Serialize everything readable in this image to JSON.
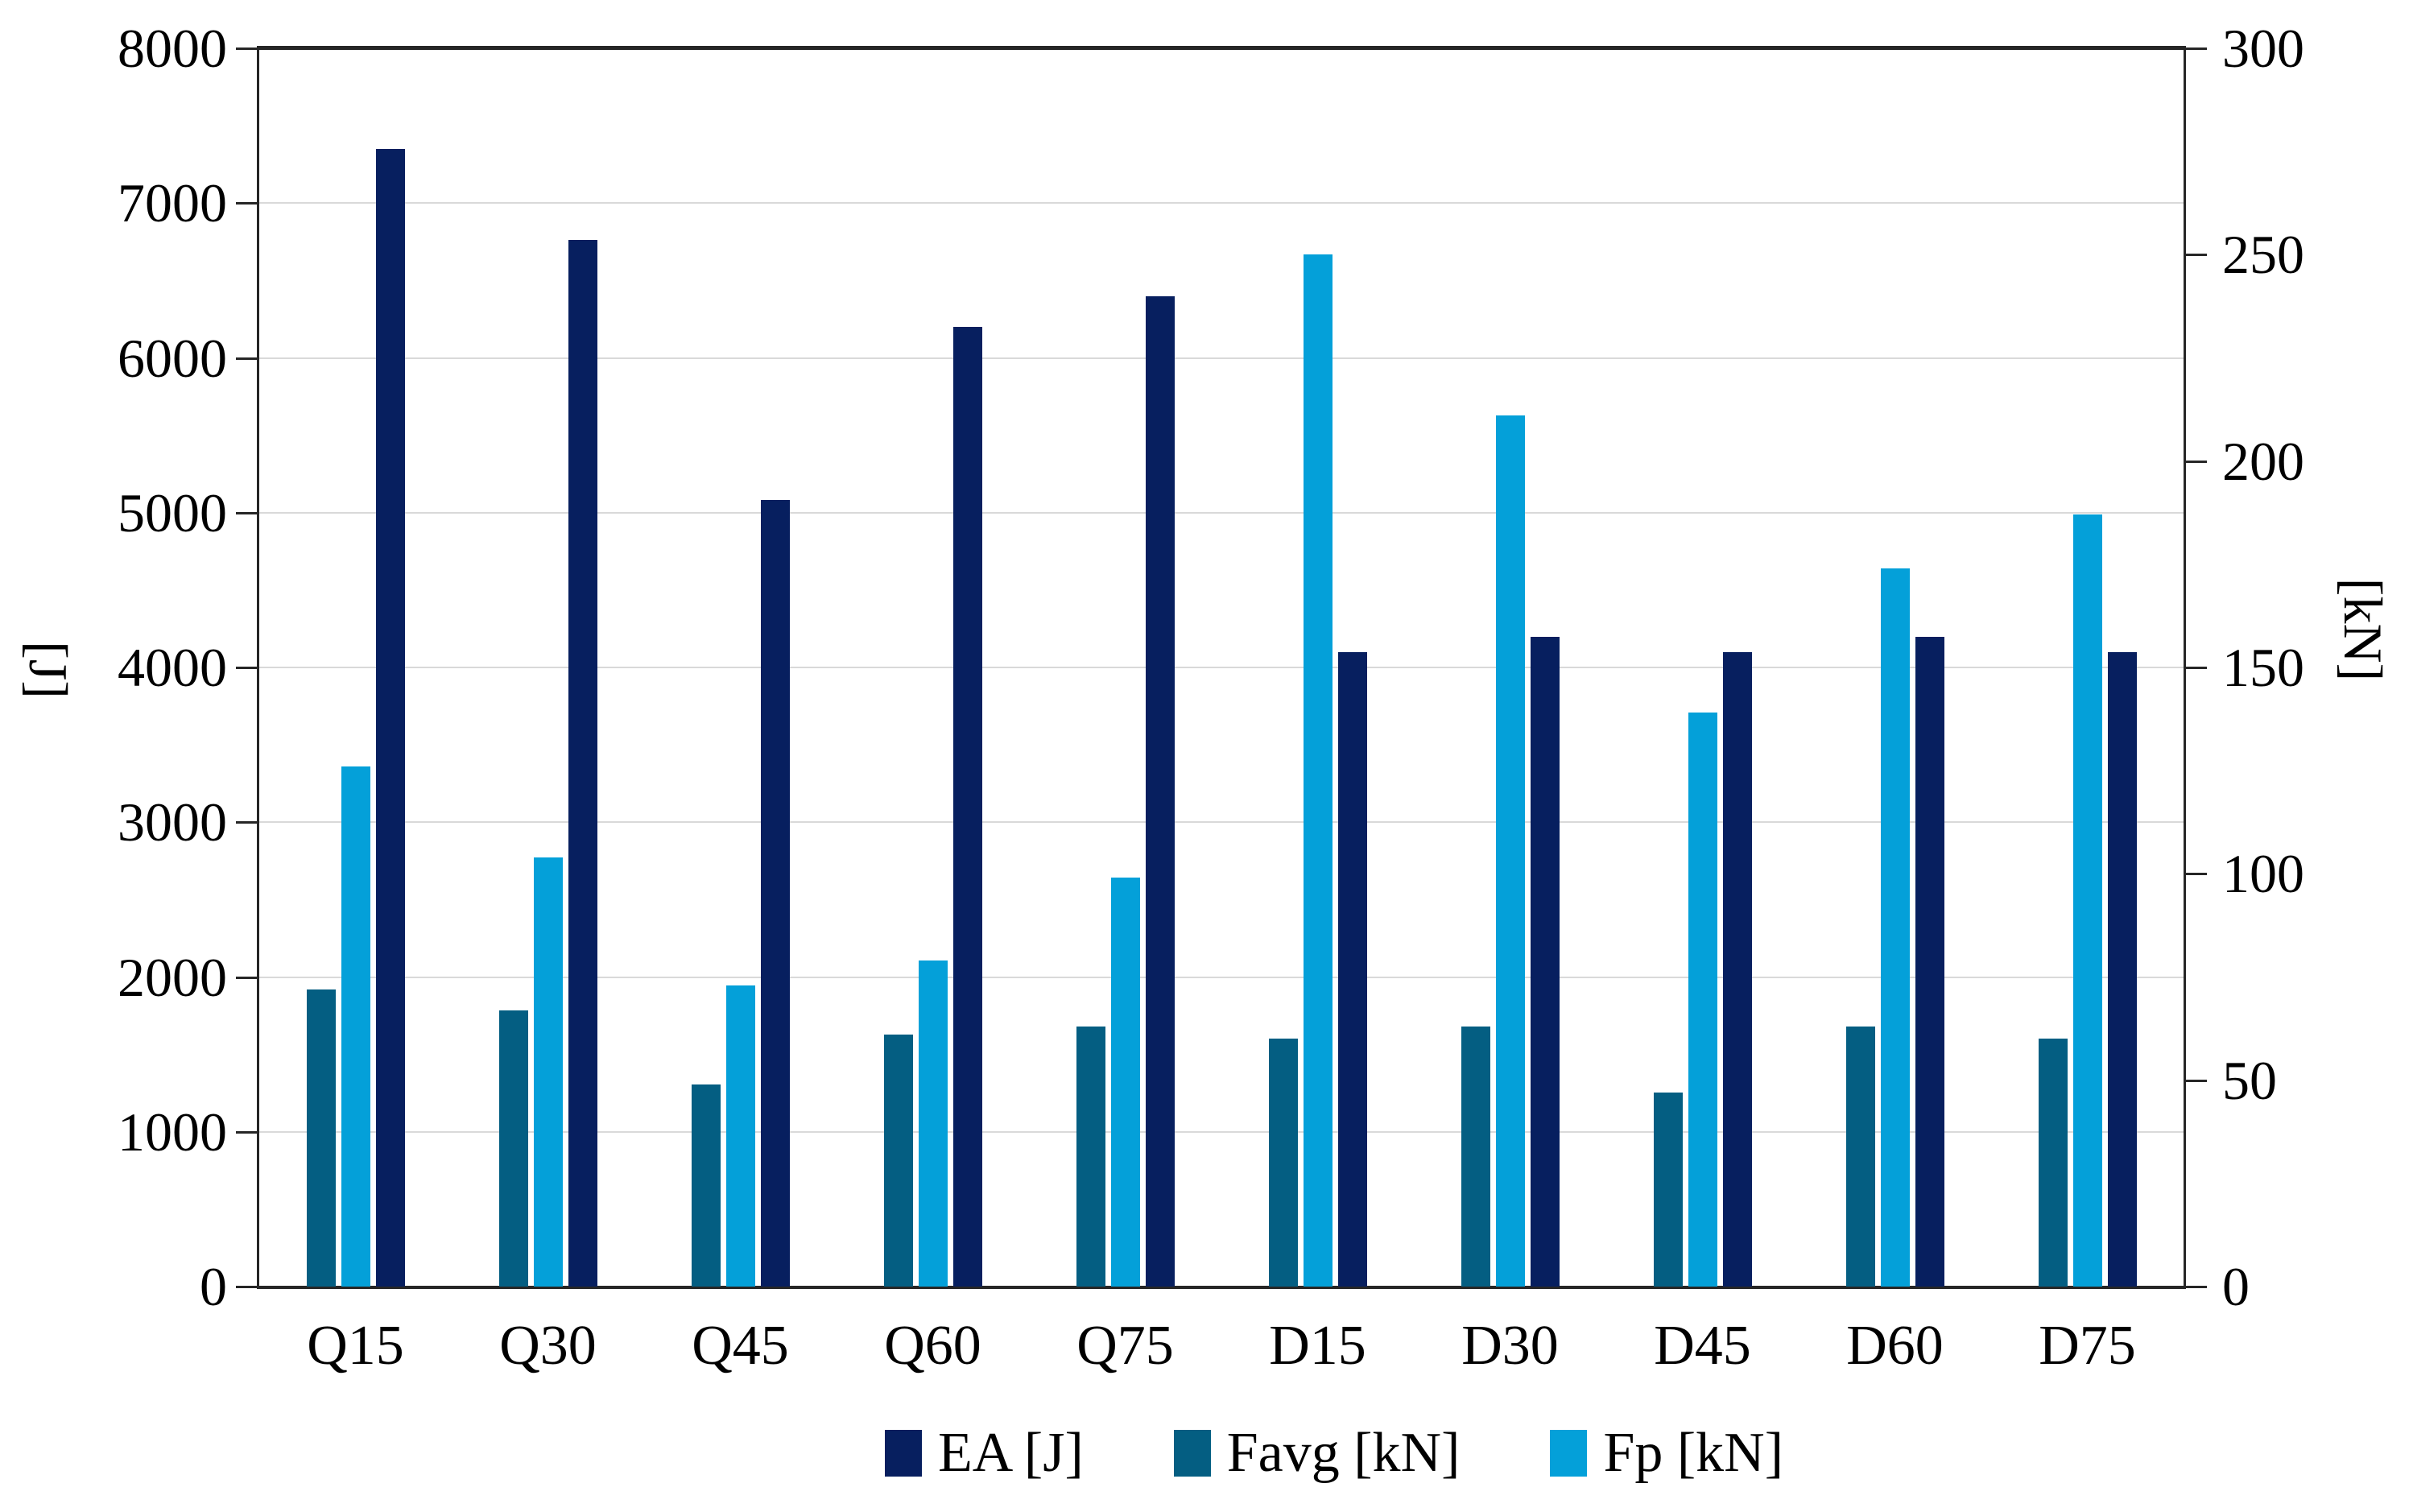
{
  "chart_data": {
    "type": "bar",
    "title": "",
    "categories": [
      "Q15",
      "Q30",
      "Q45",
      "Q60",
      "Q75",
      "D15",
      "D30",
      "D45",
      "D60",
      "D75"
    ],
    "series": [
      {
        "name": "EA [J]",
        "axis": "left",
        "color": "#071f5f",
        "values": [
          7350,
          6760,
          5080,
          6200,
          6400,
          4100,
          4200,
          4100,
          4200,
          4100
        ]
      },
      {
        "name": "Favg [kN]",
        "axis": "right",
        "color": "#045e82",
        "values": [
          72,
          67,
          49,
          61,
          63,
          60,
          63,
          47,
          63,
          60
        ]
      },
      {
        "name": "Fp [kN]",
        "axis": "right",
        "color": "#04a0d9",
        "values": [
          126,
          104,
          73,
          79,
          99,
          250,
          211,
          139,
          174,
          187
        ]
      }
    ],
    "bar_order": [
      "Favg [kN]",
      "Fp [kN]",
      "EA [J]"
    ],
    "left_axis": {
      "label": "[J]",
      "min": 0,
      "max": 8000,
      "step": 1000,
      "ticks": [
        0,
        1000,
        2000,
        3000,
        4000,
        5000,
        6000,
        7000,
        8000
      ]
    },
    "right_axis": {
      "label": "[kN]",
      "min": 0,
      "max": 300,
      "step": 50,
      "ticks": [
        0,
        50,
        100,
        150,
        200,
        250,
        300
      ]
    },
    "grid": true,
    "legend_position": "bottom",
    "colors": {
      "grid": "#d9d9d9",
      "axis": "#262626",
      "background": "#ffffff"
    }
  }
}
